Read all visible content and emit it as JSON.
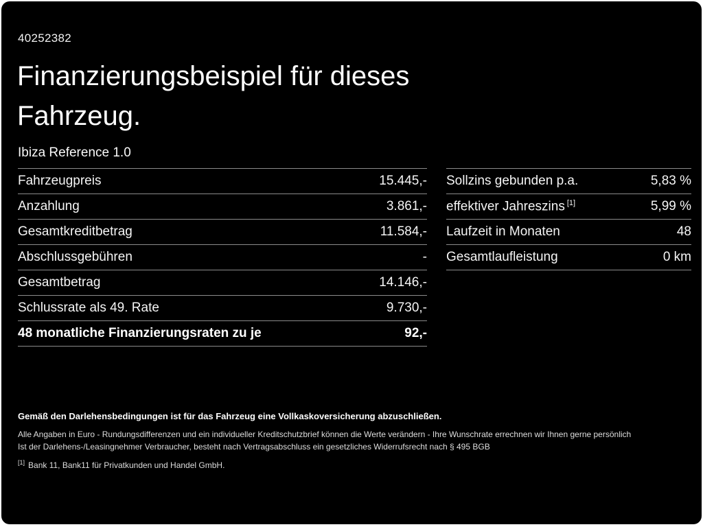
{
  "colors": {
    "background": "#000000",
    "text": "#ffffff",
    "divider": "#8c8c8c"
  },
  "header": {
    "id_number": "40252382",
    "title_line1": "Finanzierungsbeispiel für dieses",
    "title_line2": "Fahrzeug.",
    "model": "Ibiza Reference 1.0"
  },
  "left_table": {
    "rows": [
      {
        "label": "Fahrzeugpreis",
        "value": "15.445,-"
      },
      {
        "label": "Anzahlung",
        "value": "3.861,-"
      },
      {
        "label": "Gesamtkreditbetrag",
        "value": "11.584,-"
      },
      {
        "label": "Abschlussgebühren",
        "value": "-"
      },
      {
        "label": "Gesamtbetrag",
        "value": "14.146,-"
      },
      {
        "label": "Schlussrate als 49. Rate",
        "value": "9.730,-"
      },
      {
        "label": "48 monatliche Finanzierungsraten zu je",
        "value": "92,-"
      }
    ]
  },
  "right_table": {
    "rows": [
      {
        "label": "Sollzins gebunden p.a.",
        "value": "5,83 %"
      },
      {
        "label": "effektiver Jahreszins",
        "sup": "[1]",
        "value": "5,99 %"
      },
      {
        "label": "Laufzeit in Monaten",
        "value": "48"
      },
      {
        "label": "Gesamtlaufleistung",
        "value": "0 km"
      }
    ]
  },
  "footer": {
    "bold_line": "Gemäß den Darlehensbedingungen ist für das Fahrzeug eine Vollkaskoversicherung abzuschließen.",
    "line2": "Alle Angaben in Euro - Rundungsdifferenzen und ein individueller Kreditschutzbrief können die Werte verändern - Ihre Wunschrate errechnen wir Ihnen gerne persönlich",
    "line3": "Ist der Darlehens-/Leasingnehmer Verbraucher, besteht nach Vertragsabschluss ein gesetzliches Widerrufsrecht nach § 495 BGB",
    "footnote_marker": "[1]",
    "footnote_text": "Bank 11, Bank11 für Privatkunden und Handel GmbH."
  }
}
